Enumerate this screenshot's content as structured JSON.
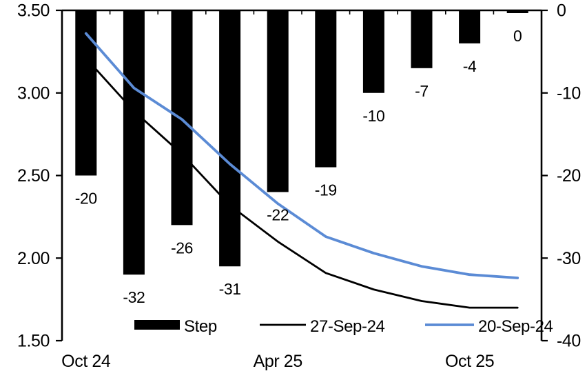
{
  "chart_data": {
    "type": "bar+line",
    "title": "",
    "background": "#ffffff",
    "grid": false,
    "num_categories": 10,
    "x_axis_tick_labels": [
      {
        "category_index": 0,
        "label": "Oct 24"
      },
      {
        "category_index": 4,
        "label": "Apr 25"
      },
      {
        "category_index": 8,
        "label": "Oct 25"
      }
    ],
    "axes": {
      "left": {
        "min": 1.5,
        "max": 3.5,
        "ticks": [
          {
            "value": 3.5,
            "label": "3.50"
          },
          {
            "value": 3.0,
            "label": "3.00"
          },
          {
            "value": 2.5,
            "label": "2.50"
          },
          {
            "value": 2.0,
            "label": "2.00"
          },
          {
            "value": 1.5,
            "label": "1.50"
          }
        ]
      },
      "right": {
        "min": -40,
        "max": 0,
        "ticks": [
          {
            "value": 0,
            "label": "0"
          },
          {
            "value": -10,
            "label": "-10"
          },
          {
            "value": -20,
            "label": "-20"
          },
          {
            "value": -30,
            "label": "-30"
          },
          {
            "value": -40,
            "label": "-40"
          }
        ]
      }
    },
    "series": [
      {
        "name": "Step",
        "type": "bar",
        "axis": "right",
        "color": "#000000",
        "values": [
          -20,
          -32,
          -26,
          -31,
          -22,
          -19,
          -10,
          -7,
          -4,
          0
        ],
        "data_labels": [
          "-20",
          "-32",
          "-26",
          "-31",
          "-22",
          "-19",
          "-10",
          "-7",
          "-4",
          "0"
        ]
      },
      {
        "name": "27-Sep-24",
        "type": "line",
        "axis": "left",
        "color": "#000000",
        "stroke_width": 2.8,
        "values": [
          3.21,
          2.89,
          2.63,
          2.32,
          2.1,
          1.91,
          1.81,
          1.74,
          1.7,
          1.7
        ]
      },
      {
        "name": "20-Sep-24",
        "type": "line",
        "axis": "left",
        "color": "#5B8BD5",
        "stroke_width": 3.8,
        "values": [
          3.36,
          3.03,
          2.84,
          2.57,
          2.33,
          2.13,
          2.03,
          1.95,
          1.9,
          1.88
        ]
      }
    ],
    "legend": {
      "position": "bottom",
      "entries": [
        "Step",
        "27-Sep-24",
        "20-Sep-24"
      ]
    }
  }
}
